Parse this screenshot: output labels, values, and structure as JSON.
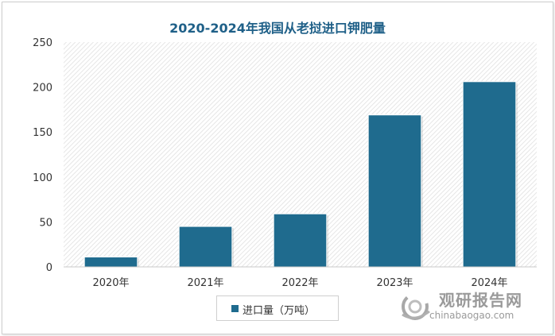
{
  "chart_data": {
    "type": "bar",
    "title": "2020-2024年我国从老挝进口钾肥量",
    "categories": [
      "2020年",
      "2021年",
      "2022年",
      "2023年",
      "2024年"
    ],
    "series": [
      {
        "name": "进口量（万吨）",
        "values": [
          11,
          45,
          59,
          169,
          206
        ]
      }
    ],
    "xlabel": "",
    "ylabel": "",
    "ylim": [
      0,
      250
    ],
    "yticks": [
      0,
      50,
      100,
      150,
      200,
      250
    ],
    "legend_position": "bottom",
    "bar_color": "#1f6b8e"
  },
  "watermark": {
    "brand_cn": "观研报告网",
    "brand_en": "chinabaogao.com"
  }
}
